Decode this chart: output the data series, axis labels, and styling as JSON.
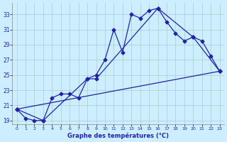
{
  "title": "Graphe des températures (°C)",
  "background_color": "#cceeff",
  "grid_color": "#aacccc",
  "line_color": "#2222aa",
  "xlim": [
    -0.5,
    23.5
  ],
  "ylim": [
    18.5,
    34.5
  ],
  "yticks": [
    19,
    21,
    23,
    25,
    27,
    29,
    31,
    33
  ],
  "xticks": [
    0,
    1,
    2,
    3,
    4,
    5,
    6,
    7,
    8,
    9,
    10,
    11,
    12,
    13,
    14,
    15,
    16,
    17,
    18,
    19,
    20,
    21,
    22,
    23
  ],
  "line1_x": [
    0,
    1,
    2,
    3,
    4,
    5,
    6,
    7,
    8,
    9,
    10,
    11,
    12,
    13,
    14,
    15,
    16,
    17,
    18,
    19,
    20,
    21,
    22,
    23
  ],
  "line1_y": [
    20.5,
    19.3,
    19.0,
    19.0,
    22.0,
    22.5,
    22.5,
    22.0,
    24.5,
    25.0,
    27.0,
    31.0,
    28.0,
    33.0,
    32.5,
    33.5,
    33.8,
    32.0,
    30.5,
    29.5,
    30.0,
    29.5,
    27.5,
    25.5
  ],
  "line2_x": [
    0,
    23
  ],
  "line2_y": [
    20.5,
    25.5
  ],
  "line3_x": [
    0,
    3,
    8,
    9,
    16,
    20,
    23
  ],
  "line3_y": [
    20.5,
    19.0,
    24.5,
    24.5,
    33.8,
    30.0,
    25.5
  ]
}
